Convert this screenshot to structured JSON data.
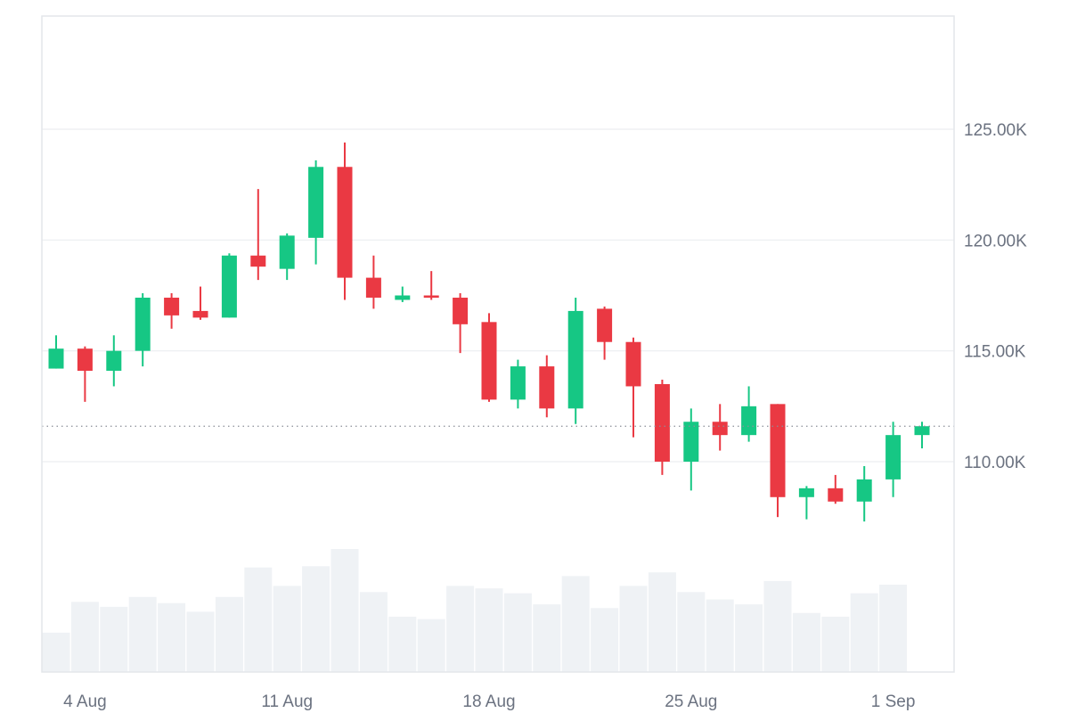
{
  "chart_data": {
    "type": "candlestick",
    "title": "",
    "xlabel": "",
    "ylabel": "",
    "ylim": [
      100000,
      130000
    ],
    "y_ticks": [
      {
        "value": 110000,
        "label": "110.00K"
      },
      {
        "value": 115000,
        "label": "115.00K"
      },
      {
        "value": 120000,
        "label": "120.00K"
      },
      {
        "value": 125000,
        "label": "125.00K"
      }
    ],
    "x_ticks": [
      {
        "date": "2025-08-04",
        "label": "4 Aug"
      },
      {
        "date": "2025-08-11",
        "label": "11 Aug"
      },
      {
        "date": "2025-08-18",
        "label": "18 Aug"
      },
      {
        "date": "2025-08-25",
        "label": "25 Aug"
      },
      {
        "date": "2025-09-01",
        "label": "1 Sep"
      }
    ],
    "current_price": 111600,
    "grid": true,
    "up_color": "#16c784",
    "down_color": "#ea3943",
    "volume_color": "#eff2f5",
    "candles": [
      {
        "date": "2025-08-03",
        "open": 114200,
        "high": 115700,
        "low": 114200,
        "close": 115100,
        "volume": 0.32
      },
      {
        "date": "2025-08-04",
        "open": 115100,
        "high": 115200,
        "low": 112700,
        "close": 114100,
        "volume": 0.57
      },
      {
        "date": "2025-08-05",
        "open": 114100,
        "high": 115700,
        "low": 113400,
        "close": 115000,
        "volume": 0.53
      },
      {
        "date": "2025-08-06",
        "open": 115000,
        "high": 117600,
        "low": 114300,
        "close": 117400,
        "volume": 0.61
      },
      {
        "date": "2025-08-07",
        "open": 117400,
        "high": 117600,
        "low": 116000,
        "close": 116600,
        "volume": 0.56
      },
      {
        "date": "2025-08-08",
        "open": 116800,
        "high": 117900,
        "low": 116400,
        "close": 116500,
        "volume": 0.49
      },
      {
        "date": "2025-08-09",
        "open": 116500,
        "high": 119400,
        "low": 116500,
        "close": 119300,
        "volume": 0.61
      },
      {
        "date": "2025-08-10",
        "open": 119300,
        "high": 122300,
        "low": 118200,
        "close": 118800,
        "volume": 0.85
      },
      {
        "date": "2025-08-11",
        "open": 118700,
        "high": 120300,
        "low": 118200,
        "close": 120200,
        "volume": 0.7
      },
      {
        "date": "2025-08-12",
        "open": 120100,
        "high": 123600,
        "low": 118900,
        "close": 123300,
        "volume": 0.86
      },
      {
        "date": "2025-08-13",
        "open": 123300,
        "high": 124400,
        "low": 117300,
        "close": 118300,
        "volume": 1.0
      },
      {
        "date": "2025-08-14",
        "open": 118300,
        "high": 119300,
        "low": 116900,
        "close": 117400,
        "volume": 0.65
      },
      {
        "date": "2025-08-15",
        "open": 117300,
        "high": 117900,
        "low": 117200,
        "close": 117500,
        "volume": 0.45
      },
      {
        "date": "2025-08-16",
        "open": 117500,
        "high": 118600,
        "low": 117300,
        "close": 117400,
        "volume": 0.43
      },
      {
        "date": "2025-08-17",
        "open": 117400,
        "high": 117600,
        "low": 114900,
        "close": 116200,
        "volume": 0.7
      },
      {
        "date": "2025-08-18",
        "open": 116300,
        "high": 116700,
        "low": 112700,
        "close": 112800,
        "volume": 0.68
      },
      {
        "date": "2025-08-19",
        "open": 112800,
        "high": 114600,
        "low": 112400,
        "close": 114300,
        "volume": 0.64
      },
      {
        "date": "2025-08-20",
        "open": 114300,
        "high": 114800,
        "low": 112000,
        "close": 112400,
        "volume": 0.55
      },
      {
        "date": "2025-08-21",
        "open": 112400,
        "high": 117400,
        "low": 111700,
        "close": 116800,
        "volume": 0.78
      },
      {
        "date": "2025-08-22",
        "open": 116900,
        "high": 117000,
        "low": 114600,
        "close": 115400,
        "volume": 0.52
      },
      {
        "date": "2025-08-23",
        "open": 115400,
        "high": 115600,
        "low": 111100,
        "close": 113400,
        "volume": 0.7
      },
      {
        "date": "2025-08-24",
        "open": 113500,
        "high": 113700,
        "low": 109400,
        "close": 110000,
        "volume": 0.81
      },
      {
        "date": "2025-08-25",
        "open": 110000,
        "high": 112400,
        "low": 108700,
        "close": 111800,
        "volume": 0.65
      },
      {
        "date": "2025-08-26",
        "open": 111800,
        "high": 112600,
        "low": 110500,
        "close": 111200,
        "volume": 0.59
      },
      {
        "date": "2025-08-27",
        "open": 111200,
        "high": 113400,
        "low": 110900,
        "close": 112500,
        "volume": 0.55
      },
      {
        "date": "2025-08-28",
        "open": 112600,
        "high": 112600,
        "low": 107500,
        "close": 108400,
        "volume": 0.74
      },
      {
        "date": "2025-08-29",
        "open": 108400,
        "high": 108900,
        "low": 107400,
        "close": 108800,
        "volume": 0.48
      },
      {
        "date": "2025-08-30",
        "open": 108800,
        "high": 109400,
        "low": 108100,
        "close": 108200,
        "volume": 0.45
      },
      {
        "date": "2025-08-31",
        "open": 108200,
        "high": 109800,
        "low": 107300,
        "close": 109200,
        "volume": 0.64
      },
      {
        "date": "2025-09-01",
        "open": 109200,
        "high": 111800,
        "low": 108400,
        "close": 111200,
        "volume": 0.71
      },
      {
        "date": "2025-09-02",
        "open": 111200,
        "high": 111800,
        "low": 110600,
        "close": 111600,
        "volume": 0
      }
    ]
  }
}
